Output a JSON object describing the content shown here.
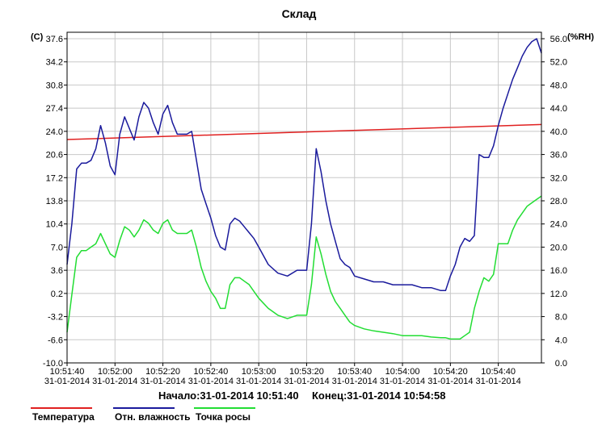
{
  "chart_data": {
    "type": "line",
    "title": "Склад",
    "y_left": {
      "unit": "(C)",
      "ticks": [
        "37.6",
        "34.2",
        "30.8",
        "27.4",
        "24.0",
        "20.6",
        "17.2",
        "13.8",
        "10.4",
        "7.0",
        "3.6",
        "0.2",
        "-3.2",
        "-6.6",
        "-10.0"
      ],
      "range": [
        -10.0,
        37.6
      ]
    },
    "y_right": {
      "unit": "(%RH)",
      "ticks": [
        "56.0",
        "52.0",
        "48.0",
        "44.0",
        "40.0",
        "36.0",
        "32.0",
        "28.0",
        "24.0",
        "20.0",
        "16.0",
        "12.0",
        "8.0",
        "4.0",
        "0.0"
      ],
      "range": [
        0.0,
        56.0
      ]
    },
    "x_ticks": [
      {
        "time": "10:51:40",
        "date": "31-01-2014"
      },
      {
        "time": "10:52:00",
        "date": "31-01-2014"
      },
      {
        "time": "10:52:20",
        "date": "31-01-2014"
      },
      {
        "time": "10:52:40",
        "date": "31-01-2014"
      },
      {
        "time": "10:53:00",
        "date": "31-01-2014"
      },
      {
        "time": "10:53:20",
        "date": "31-01-2014"
      },
      {
        "time": "10:53:40",
        "date": "31-01-2014"
      },
      {
        "time": "10:54:00",
        "date": "31-01-2014"
      },
      {
        "time": "10:54:20",
        "date": "31-01-2014"
      },
      {
        "time": "10:54:40",
        "date": "31-01-2014"
      }
    ],
    "x_range": [
      "10:51:40",
      "10:54:58"
    ],
    "grid": true,
    "legend_position": "bottom",
    "series": [
      {
        "name": "Температура",
        "color": "#e02020",
        "axis": "left",
        "x": [
          "10:51:40",
          "10:54:58"
        ],
        "values": [
          22.8,
          25.0
        ]
      },
      {
        "name": "Отн. влажность",
        "color": "#1a1a9c",
        "axis": "right",
        "x": [
          "10:51:40",
          "10:51:42",
          "10:51:44",
          "10:51:46",
          "10:51:48",
          "10:51:50",
          "10:51:52",
          "10:51:54",
          "10:51:56",
          "10:51:58",
          "10:52:00",
          "10:52:02",
          "10:52:04",
          "10:52:06",
          "10:52:08",
          "10:52:10",
          "10:52:12",
          "10:52:14",
          "10:52:16",
          "10:52:18",
          "10:52:20",
          "10:52:22",
          "10:52:24",
          "10:52:26",
          "10:52:28",
          "10:52:30",
          "10:52:32",
          "10:52:34",
          "10:52:36",
          "10:52:38",
          "10:52:40",
          "10:52:42",
          "10:52:44",
          "10:52:46",
          "10:52:48",
          "10:52:50",
          "10:52:52",
          "10:52:54",
          "10:52:56",
          "10:52:58",
          "10:53:00",
          "10:53:04",
          "10:53:08",
          "10:53:12",
          "10:53:16",
          "10:53:20",
          "10:53:22",
          "10:53:24",
          "10:53:26",
          "10:53:28",
          "10:53:30",
          "10:53:32",
          "10:53:34",
          "10:53:36",
          "10:53:38",
          "10:53:40",
          "10:53:44",
          "10:53:48",
          "10:53:52",
          "10:53:56",
          "10:54:00",
          "10:54:04",
          "10:54:08",
          "10:54:12",
          "10:54:16",
          "10:54:18",
          "10:54:20",
          "10:54:22",
          "10:54:24",
          "10:54:26",
          "10:54:28",
          "10:54:30",
          "10:54:32",
          "10:54:34",
          "10:54:36",
          "10:54:38",
          "10:54:40",
          "10:54:42",
          "10:54:44",
          "10:54:46",
          "10:54:48",
          "10:54:50",
          "10:54:52",
          "10:54:54",
          "10:54:56",
          "10:54:58"
        ],
        "values": [
          17.0,
          24.0,
          33.5,
          34.5,
          34.5,
          35.0,
          37.0,
          41.0,
          38.0,
          34.0,
          32.5,
          39.5,
          42.5,
          40.5,
          38.5,
          42.5,
          45.0,
          44.0,
          41.5,
          39.5,
          43.0,
          44.5,
          41.5,
          39.5,
          39.5,
          39.5,
          40.0,
          35.0,
          30.0,
          27.5,
          25.0,
          22.0,
          20.0,
          19.5,
          24.0,
          25.0,
          24.5,
          23.5,
          22.5,
          21.5,
          20.0,
          17.0,
          15.5,
          15.0,
          16.0,
          16.0,
          24.0,
          37.0,
          33.0,
          28.0,
          24.0,
          21.0,
          18.0,
          17.0,
          16.5,
          15.0,
          14.5,
          14.0,
          14.0,
          13.5,
          13.5,
          13.5,
          13.0,
          13.0,
          12.5,
          12.5,
          15.0,
          17.0,
          20.0,
          21.5,
          21.0,
          22.0,
          36.0,
          35.5,
          35.5,
          37.5,
          41.0,
          44.0,
          46.5,
          49.0,
          51.0,
          53.0,
          54.5,
          55.5,
          56.0,
          53.5
        ]
      },
      {
        "name": "Точка росы",
        "color": "#22dd33",
        "axis": "left",
        "x": [
          "10:51:40",
          "10:51:42",
          "10:51:44",
          "10:51:46",
          "10:51:48",
          "10:51:50",
          "10:51:52",
          "10:51:54",
          "10:51:56",
          "10:51:58",
          "10:52:00",
          "10:52:02",
          "10:52:04",
          "10:52:06",
          "10:52:08",
          "10:52:10",
          "10:52:12",
          "10:52:14",
          "10:52:16",
          "10:52:18",
          "10:52:20",
          "10:52:22",
          "10:52:24",
          "10:52:26",
          "10:52:28",
          "10:52:30",
          "10:52:32",
          "10:52:34",
          "10:52:36",
          "10:52:38",
          "10:52:40",
          "10:52:42",
          "10:52:44",
          "10:52:46",
          "10:52:48",
          "10:52:50",
          "10:52:52",
          "10:52:54",
          "10:52:56",
          "10:52:58",
          "10:53:00",
          "10:53:04",
          "10:53:08",
          "10:53:12",
          "10:53:16",
          "10:53:20",
          "10:53:22",
          "10:53:24",
          "10:53:26",
          "10:53:28",
          "10:53:30",
          "10:53:32",
          "10:53:34",
          "10:53:36",
          "10:53:38",
          "10:53:40",
          "10:53:44",
          "10:53:48",
          "10:53:52",
          "10:53:56",
          "10:54:00",
          "10:54:04",
          "10:54:08",
          "10:54:12",
          "10:54:16",
          "10:54:18",
          "10:54:20",
          "10:54:22",
          "10:54:24",
          "10:54:26",
          "10:54:28",
          "10:54:30",
          "10:54:32",
          "10:54:34",
          "10:54:36",
          "10:54:38",
          "10:54:40",
          "10:54:42",
          "10:54:44",
          "10:54:46",
          "10:54:48",
          "10:54:50",
          "10:54:52",
          "10:54:54",
          "10:54:56",
          "10:54:58"
        ],
        "values": [
          -5.5,
          0.0,
          5.5,
          6.5,
          6.5,
          7.0,
          7.5,
          9.0,
          7.5,
          6.0,
          5.5,
          8.0,
          10.0,
          9.5,
          8.5,
          9.5,
          11.0,
          10.5,
          9.5,
          9.0,
          10.5,
          11.0,
          9.5,
          9.0,
          9.0,
          9.0,
          9.5,
          7.0,
          4.0,
          2.0,
          0.5,
          -0.5,
          -2.0,
          -2.0,
          1.5,
          2.5,
          2.5,
          2.0,
          1.5,
          0.5,
          -0.5,
          -2.0,
          -3.0,
          -3.5,
          -3.0,
          -3.0,
          1.5,
          8.5,
          6.0,
          3.0,
          0.5,
          -1.0,
          -2.0,
          -3.0,
          -4.0,
          -4.5,
          -5.0,
          -5.3,
          -5.5,
          -5.7,
          -6.0,
          -6.0,
          -6.0,
          -6.2,
          -6.3,
          -6.3,
          -6.5,
          -6.5,
          -6.5,
          -6.0,
          -5.5,
          -2.0,
          0.5,
          2.5,
          2.0,
          3.0,
          7.5,
          7.5,
          7.5,
          9.5,
          11.0,
          12.0,
          13.0,
          13.5,
          14.0,
          14.5
        ]
      }
    ]
  },
  "footer": {
    "start": "Начало:31-01-2014 10:51:40",
    "end": "Конец:31-01-2014 10:54:58"
  }
}
